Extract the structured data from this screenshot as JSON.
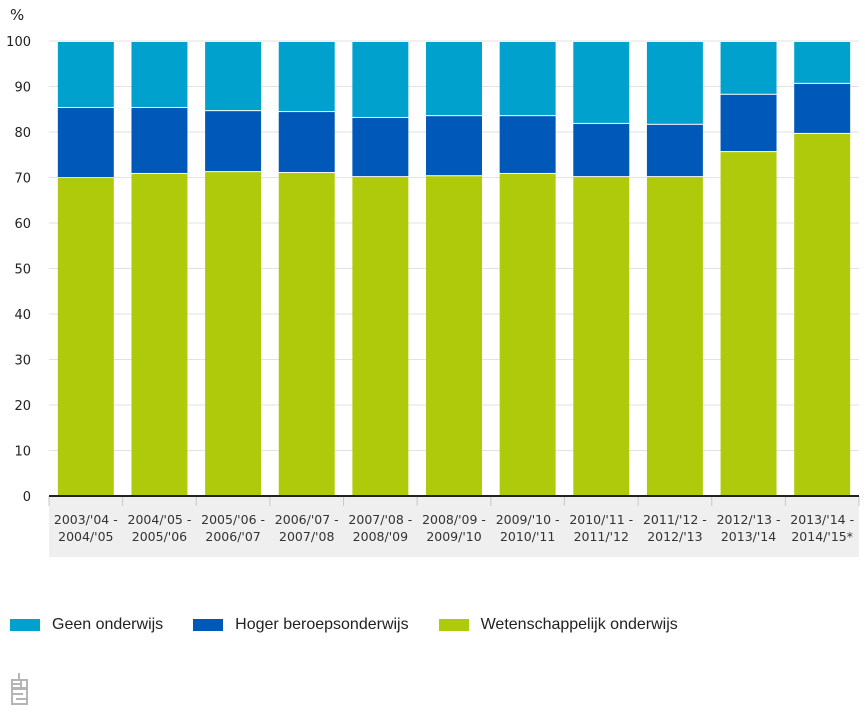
{
  "chart_data": {
    "type": "bar",
    "stacked": true,
    "title": "",
    "ylabel": "%",
    "xlabel": "",
    "ylim": [
      0,
      100
    ],
    "yticks": [
      0,
      10,
      20,
      30,
      40,
      50,
      60,
      70,
      80,
      90,
      100
    ],
    "grid": true,
    "legend_position": "bottom-left",
    "categories": [
      [
        "2003/'04 -",
        "2004/'05"
      ],
      [
        "2004/'05 -",
        "2005/'06"
      ],
      [
        "2005/'06 -",
        "2006/'07"
      ],
      [
        "2006/'07 -",
        "2007/'08"
      ],
      [
        "2007/'08 -",
        "2008/'09"
      ],
      [
        "2008/'09 -",
        "2009/'10"
      ],
      [
        "2009/'10 -",
        "2010/'11"
      ],
      [
        "2010/'11 -",
        "2011/'12"
      ],
      [
        "2011/'12 -",
        "2012/'13"
      ],
      [
        "2012/'13 -",
        "2013/'14"
      ],
      [
        "2013/'14 -",
        "2014/'15*"
      ]
    ],
    "series": [
      {
        "name": "Wetenschappelijk onderwijs",
        "color": "#afca0b",
        "values": [
          70.1,
          71.0,
          71.4,
          71.2,
          70.3,
          70.5,
          71.0,
          70.3,
          70.3,
          75.8,
          79.8
        ]
      },
      {
        "name": "Hoger beroepsonderwijs",
        "color": "#0058b8",
        "values": [
          15.4,
          14.5,
          13.4,
          13.4,
          13.0,
          13.2,
          12.7,
          11.7,
          11.5,
          12.6,
          11.0
        ]
      },
      {
        "name": "Geen onderwijs",
        "color": "#00a1cd",
        "values": [
          14.5,
          14.5,
          15.2,
          15.4,
          16.7,
          16.3,
          16.3,
          18.0,
          18.2,
          11.6,
          9.2
        ]
      }
    ]
  },
  "legend": [
    {
      "label": "Geen onderwijs",
      "color": "#00a1cd"
    },
    {
      "label": "Hoger beroepsonderwijs",
      "color": "#0058b8"
    },
    {
      "label": "Wetenschappelijk onderwijs",
      "color": "#afca0b"
    }
  ],
  "logo": {
    "icon": "cbs-logo-icon"
  }
}
